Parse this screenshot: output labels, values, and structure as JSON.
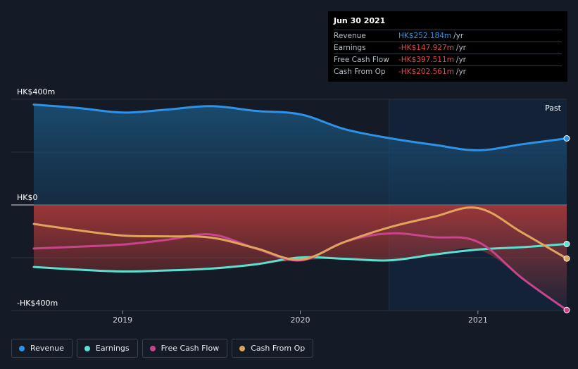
{
  "tooltip": {
    "date": "Jun 30 2021",
    "rows": [
      {
        "label": "Revenue",
        "value": "HK$252.184m",
        "unit": "/yr",
        "color": "#2e93e8"
      },
      {
        "label": "Earnings",
        "value": "-HK$147.927m",
        "unit": "/yr",
        "color": "#e5484d"
      },
      {
        "label": "Free Cash Flow",
        "value": "-HK$397.511m",
        "unit": "/yr",
        "color": "#e5484d"
      },
      {
        "label": "Cash From Op",
        "value": "-HK$202.561m",
        "unit": "/yr",
        "color": "#e5484d"
      }
    ]
  },
  "legend": [
    {
      "label": "Revenue",
      "color": "#2e93e8"
    },
    {
      "label": "Earnings",
      "color": "#5ce0d0"
    },
    {
      "label": "Free Cash Flow",
      "color": "#c8458e"
    },
    {
      "label": "Cash From Op",
      "color": "#e0a45c"
    }
  ],
  "chart_data": {
    "type": "line",
    "ylim": [
      -400,
      400
    ],
    "y_unit": "HK$m",
    "xlim": [
      2018.5,
      2021.5
    ],
    "y_tick_labels": [
      {
        "value": 400,
        "label": "HK$400m"
      },
      {
        "value": 0,
        "label": "HK$0"
      },
      {
        "value": -400,
        "label": "-HK$400m"
      }
    ],
    "x_tick_labels": [
      {
        "value": 2019,
        "label": "2019"
      },
      {
        "value": 2020,
        "label": "2020"
      },
      {
        "value": 2021,
        "label": "2021"
      }
    ],
    "past_label": "Past",
    "past_start": 2020.5,
    "series": [
      {
        "name": "Revenue",
        "color": "#2e93e8",
        "x": [
          2018.5,
          2018.75,
          2019.0,
          2019.25,
          2019.5,
          2019.75,
          2020.0,
          2020.25,
          2020.5,
          2020.75,
          2021.0,
          2021.25,
          2021.5
        ],
        "y": [
          380,
          367,
          350,
          361,
          374,
          356,
          343,
          287,
          253,
          228,
          207,
          230,
          252
        ]
      },
      {
        "name": "Earnings",
        "color": "#5ce0d0",
        "x": [
          2018.5,
          2018.75,
          2019.0,
          2019.25,
          2019.5,
          2019.75,
          2020.0,
          2020.25,
          2020.5,
          2020.75,
          2021.0,
          2021.25,
          2021.5
        ],
        "y": [
          -235,
          -245,
          -252,
          -248,
          -241,
          -225,
          -199,
          -204,
          -210,
          -188,
          -169,
          -160,
          -148
        ]
      },
      {
        "name": "Free Cash Flow",
        "color": "#c8458e",
        "x": [
          2018.5,
          2018.75,
          2019.0,
          2019.25,
          2019.5,
          2019.75,
          2020.0,
          2020.25,
          2020.5,
          2020.75,
          2021.0,
          2021.25,
          2021.5
        ],
        "y": [
          -165,
          -158,
          -150,
          -132,
          -112,
          -165,
          -210,
          -140,
          -108,
          -122,
          -140,
          -278,
          -398
        ]
      },
      {
        "name": "Cash From Op",
        "color": "#e0a45c",
        "x": [
          2018.5,
          2018.75,
          2019.0,
          2019.25,
          2019.5,
          2019.75,
          2020.0,
          2020.25,
          2020.5,
          2020.75,
          2021.0,
          2021.25,
          2021.5
        ],
        "y": [
          -72,
          -96,
          -116,
          -119,
          -124,
          -164,
          -207,
          -140,
          -85,
          -45,
          -12,
          -105,
          -203
        ]
      }
    ]
  }
}
